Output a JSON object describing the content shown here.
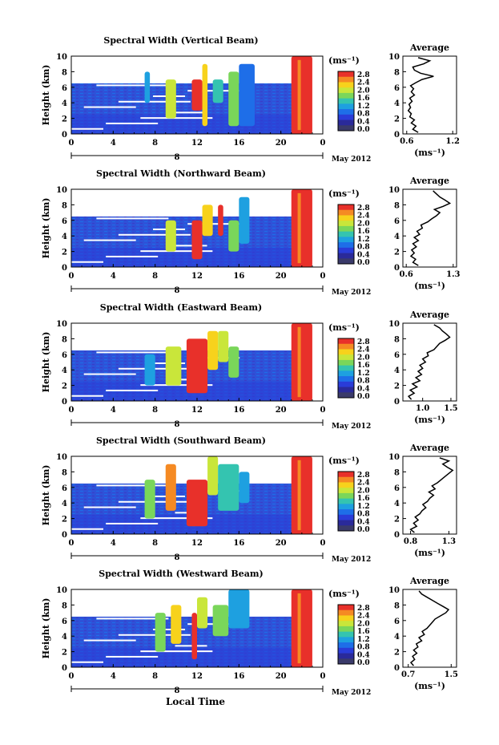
{
  "figure": {
    "xlabel": "Local Time",
    "date_label": "May 2012",
    "day_label": "8",
    "units_label": "(ms⁻¹)"
  },
  "colorbar": {
    "ticks": [
      "2.8",
      "2.4",
      "2.0",
      "1.6",
      "1.2",
      "0.8",
      "0.4",
      "0.0"
    ],
    "colors": [
      "#e8302a",
      "#f58a23",
      "#f7d21c",
      "#c9e63a",
      "#7ad65a",
      "#34c4b0",
      "#1ea0e0",
      "#1e6ee8",
      "#2a3cd8",
      "#2a2a9a",
      "#3a3a6a"
    ]
  },
  "chart_data": [
    {
      "type": "heatmap",
      "title": "Spectral Width (Vertical Beam)",
      "ylabel": "Height (km)",
      "xlabel": "Local Time",
      "x_ticks": [
        "0",
        "4",
        "8",
        "12",
        "16",
        "20",
        "0"
      ],
      "y_ticks": [
        "0",
        "2",
        "4",
        "6",
        "8",
        "10"
      ],
      "xlim": [
        0,
        24
      ],
      "ylim": [
        0,
        10
      ],
      "colorbar_range": [
        0.0,
        2.8
      ],
      "units": "(ms⁻¹)",
      "average_profile": {
        "title": "Average",
        "xlabel": "(ms⁻¹)",
        "x_ticks": [
          "0.6",
          "1.2"
        ],
        "xlim": [
          0.55,
          1.25
        ],
        "y_ticks": [
          "0",
          "2",
          "4",
          "6",
          "8",
          "10"
        ],
        "heights": [
          0.2,
          0.6,
          1.0,
          1.4,
          1.8,
          2.2,
          2.6,
          3.0,
          3.4,
          3.8,
          4.2,
          4.6,
          5.0,
          5.4,
          5.8,
          6.2,
          6.6,
          7.0,
          7.4,
          7.8,
          8.2,
          8.6,
          9.0,
          9.4,
          9.8
        ],
        "values": [
          0.75,
          0.68,
          0.72,
          0.66,
          0.7,
          0.64,
          0.66,
          0.62,
          0.65,
          0.63,
          0.67,
          0.64,
          0.7,
          0.66,
          0.69,
          0.65,
          0.72,
          0.8,
          0.95,
          0.78,
          0.7,
          0.68,
          0.82,
          0.9,
          0.75
        ]
      }
    },
    {
      "type": "heatmap",
      "title": "Spectral Width (Northward Beam)",
      "ylabel": "Height (km)",
      "xlabel": "Local Time",
      "x_ticks": [
        "0",
        "4",
        "8",
        "12",
        "16",
        "20",
        "0"
      ],
      "y_ticks": [
        "0",
        "2",
        "4",
        "6",
        "8",
        "10"
      ],
      "xlim": [
        0,
        24
      ],
      "ylim": [
        0,
        10
      ],
      "colorbar_range": [
        0.0,
        2.8
      ],
      "units": "(ms⁻¹)",
      "average_profile": {
        "title": "Average",
        "xlabel": "(ms⁻¹)",
        "x_ticks": [
          "0.6",
          "1.3"
        ],
        "xlim": [
          0.55,
          1.35
        ],
        "y_ticks": [
          "0",
          "2",
          "4",
          "6",
          "8",
          "10"
        ],
        "heights": [
          0.2,
          0.6,
          1.0,
          1.4,
          1.8,
          2.2,
          2.6,
          3.0,
          3.4,
          3.8,
          4.2,
          4.6,
          5.0,
          5.4,
          5.8,
          6.2,
          6.6,
          7.0,
          7.4,
          7.8,
          8.2,
          8.6,
          9.0,
          9.4,
          9.8
        ],
        "values": [
          0.78,
          0.7,
          0.74,
          0.67,
          0.72,
          0.68,
          0.75,
          0.7,
          0.78,
          0.72,
          0.8,
          0.76,
          0.84,
          0.82,
          0.92,
          0.98,
          1.05,
          1.1,
          1.02,
          1.15,
          1.25,
          1.18,
          1.1,
          1.05,
          1.0
        ]
      }
    },
    {
      "type": "heatmap",
      "title": "Spectral Width (Eastward Beam)",
      "ylabel": "Height (km)",
      "xlabel": "Local Time",
      "x_ticks": [
        "0",
        "4",
        "8",
        "12",
        "16",
        "20",
        "0"
      ],
      "y_ticks": [
        "0",
        "2",
        "4",
        "6",
        "8",
        "10"
      ],
      "xlim": [
        0,
        24
      ],
      "ylim": [
        0,
        10
      ],
      "colorbar_range": [
        0.0,
        2.8
      ],
      "units": "(ms⁻¹)",
      "average_profile": {
        "title": "Average",
        "xlabel": "(ms⁻¹)",
        "x_ticks": [
          "1.0",
          "1.5"
        ],
        "xlim": [
          0.65,
          1.6
        ],
        "y_ticks": [
          "0",
          "2",
          "4",
          "6",
          "8",
          "10"
        ],
        "heights": [
          0.2,
          0.6,
          1.0,
          1.4,
          1.8,
          2.2,
          2.6,
          3.0,
          3.4,
          3.8,
          4.2,
          4.6,
          5.0,
          5.4,
          5.8,
          6.2,
          6.6,
          7.0,
          7.4,
          7.8,
          8.2,
          8.6,
          9.0,
          9.4,
          9.8
        ],
        "values": [
          0.8,
          0.75,
          0.85,
          0.78,
          0.9,
          0.82,
          0.95,
          0.88,
          0.98,
          0.92,
          1.0,
          0.95,
          1.05,
          1.0,
          1.1,
          1.08,
          1.2,
          1.25,
          1.3,
          1.4,
          1.48,
          1.42,
          1.35,
          1.3,
          1.2
        ]
      }
    },
    {
      "type": "heatmap",
      "title": "Spectral Width (Southward Beam)",
      "ylabel": "Height (km)",
      "xlabel": "Local Time",
      "x_ticks": [
        "0",
        "4",
        "8",
        "12",
        "16",
        "20",
        "0"
      ],
      "y_ticks": [
        "0",
        "2",
        "4",
        "6",
        "8",
        "10"
      ],
      "xlim": [
        0,
        24
      ],
      "ylim": [
        0,
        10
      ],
      "colorbar_range": [
        0.0,
        2.8
      ],
      "units": "(ms⁻¹)",
      "average_profile": {
        "title": "Average",
        "xlabel": "(ms⁻¹)",
        "x_ticks": [
          "0.8",
          "1.3"
        ],
        "xlim": [
          0.7,
          1.4
        ],
        "y_ticks": [
          "0",
          "2",
          "4",
          "6",
          "8",
          "10"
        ],
        "heights": [
          0.2,
          0.6,
          1.0,
          1.4,
          1.8,
          2.2,
          2.6,
          3.0,
          3.4,
          3.8,
          4.2,
          4.6,
          5.0,
          5.4,
          5.8,
          6.2,
          6.6,
          7.0,
          7.4,
          7.8,
          8.2,
          8.6,
          9.0,
          9.4,
          9.8
        ],
        "values": [
          0.85,
          0.8,
          0.88,
          0.84,
          0.9,
          0.86,
          0.92,
          0.95,
          1.0,
          0.96,
          1.02,
          1.05,
          1.1,
          1.04,
          1.12,
          1.08,
          1.15,
          1.2,
          1.25,
          1.3,
          1.35,
          1.28,
          1.22,
          1.3,
          1.18
        ]
      }
    },
    {
      "type": "heatmap",
      "title": "Spectral Width (Westward Beam)",
      "ylabel": "Height (km)",
      "xlabel": "Local Time",
      "x_ticks": [
        "0",
        "4",
        "8",
        "12",
        "16",
        "20",
        "0"
      ],
      "y_ticks": [
        "0",
        "2",
        "4",
        "6",
        "8",
        "10"
      ],
      "xlim": [
        0,
        24
      ],
      "ylim": [
        0,
        10
      ],
      "colorbar_range": [
        0.0,
        2.8
      ],
      "units": "(ms⁻¹)",
      "average_profile": {
        "title": "Average",
        "xlabel": "(ms⁻¹)",
        "x_ticks": [
          "0.7",
          "1.5"
        ],
        "xlim": [
          0.6,
          1.6
        ],
        "y_ticks": [
          "0",
          "2",
          "4",
          "6",
          "8",
          "10"
        ],
        "heights": [
          0.2,
          0.6,
          1.0,
          1.4,
          1.8,
          2.2,
          2.6,
          3.0,
          3.4,
          3.8,
          4.2,
          4.6,
          5.0,
          5.4,
          5.8,
          6.2,
          6.6,
          7.0,
          7.4,
          7.8,
          8.2,
          8.6,
          9.0,
          9.4,
          9.8
        ],
        "values": [
          0.8,
          0.75,
          0.82,
          0.78,
          0.86,
          0.8,
          0.88,
          0.85,
          0.95,
          0.9,
          1.0,
          0.96,
          1.05,
          1.1,
          1.15,
          1.2,
          1.3,
          1.4,
          1.45,
          1.35,
          1.25,
          1.15,
          1.05,
          0.95,
          0.9
        ]
      }
    }
  ]
}
